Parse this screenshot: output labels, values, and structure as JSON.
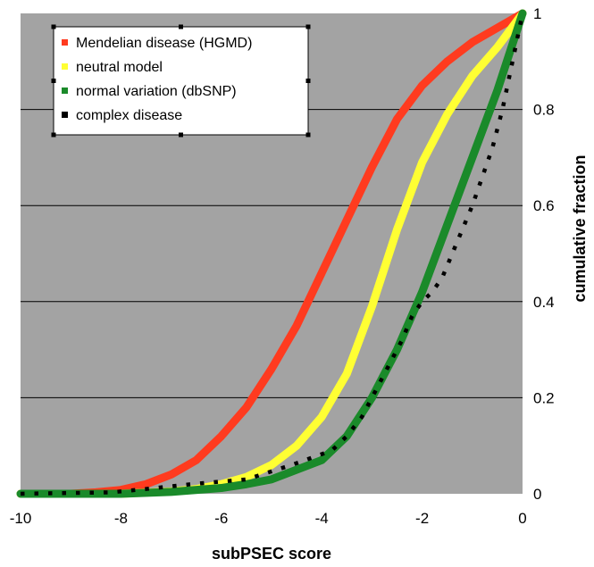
{
  "chart_data": {
    "type": "line",
    "title": "",
    "xlabel": "subPSEC score",
    "ylabel": "cumulative fraction",
    "xlim": [
      -10,
      0
    ],
    "ylim": [
      0,
      1
    ],
    "x_ticks": [
      "-10",
      "-8",
      "-6",
      "-4",
      "-2",
      "0"
    ],
    "y_ticks": [
      "0",
      "0.2",
      "0.4",
      "0.6",
      "0.8",
      "1"
    ],
    "grid": "horizontal",
    "background": "#a3a3a3",
    "legend_position": "top-left",
    "series": [
      {
        "name": "Mendelian disease (HGMD)",
        "color": "#ff3b1f",
        "style": "solid",
        "x": [
          -10,
          -9,
          -8.5,
          -8,
          -7.5,
          -7,
          -6.5,
          -6,
          -5.5,
          -5,
          -4.5,
          -4,
          -3.5,
          -3,
          -2.5,
          -2,
          -1.5,
          -1,
          -0.5,
          0
        ],
        "y": [
          0,
          0,
          0.003,
          0.008,
          0.02,
          0.04,
          0.07,
          0.12,
          0.18,
          0.26,
          0.35,
          0.46,
          0.57,
          0.68,
          0.78,
          0.85,
          0.9,
          0.94,
          0.97,
          1.0
        ]
      },
      {
        "name": "neutral model",
        "color": "#ffff33",
        "style": "solid",
        "x": [
          -10,
          -8,
          -7,
          -6.5,
          -6,
          -5.5,
          -5,
          -4.5,
          -4,
          -3.5,
          -3,
          -2.5,
          -2,
          -1.5,
          -1,
          -0.5,
          0
        ],
        "y": [
          0,
          0,
          0.005,
          0.01,
          0.02,
          0.035,
          0.06,
          0.1,
          0.16,
          0.25,
          0.39,
          0.55,
          0.69,
          0.79,
          0.87,
          0.93,
          1.0
        ]
      },
      {
        "name": "normal variation (dbSNP)",
        "color": "#1a8a2a",
        "style": "solid",
        "x": [
          -10,
          -8,
          -7,
          -6,
          -5.5,
          -5,
          -4.5,
          -4,
          -3.5,
          -3,
          -2.5,
          -2,
          -1.5,
          -1,
          -0.5,
          -0.25,
          0
        ],
        "y": [
          0,
          0,
          0.004,
          0.012,
          0.02,
          0.03,
          0.05,
          0.07,
          0.12,
          0.2,
          0.3,
          0.42,
          0.56,
          0.7,
          0.84,
          0.92,
          1.0
        ]
      },
      {
        "name": "complex disease",
        "color": "#000000",
        "style": "dotted",
        "x": [
          -10,
          -8.2,
          -7.5,
          -6.6,
          -5.5,
          -4.6,
          -3.8,
          -3.5,
          -3.2,
          -3.0,
          -2.8,
          -2.6,
          -2.4,
          -2.2,
          -2.0,
          -1.8,
          -1.6,
          -1.4,
          -1.2,
          -1.0,
          -0.8,
          -0.6,
          -0.4,
          -0.2,
          0
        ],
        "y": [
          0,
          0.003,
          0.01,
          0.02,
          0.03,
          0.06,
          0.09,
          0.12,
          0.16,
          0.2,
          0.24,
          0.28,
          0.32,
          0.37,
          0.4,
          0.42,
          0.45,
          0.5,
          0.55,
          0.6,
          0.66,
          0.72,
          0.8,
          0.9,
          1.0
        ]
      }
    ]
  }
}
